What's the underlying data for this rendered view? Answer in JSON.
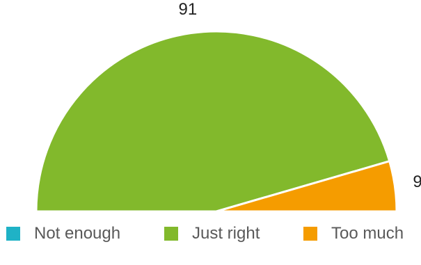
{
  "chart_data": {
    "type": "pie",
    "variant": "half-donut-semicircle",
    "title": "",
    "categories": [
      "Not enough",
      "Just right",
      "Too much"
    ],
    "values": [
      0,
      91,
      9
    ],
    "data_labels": [
      "",
      "91",
      "9"
    ],
    "colors": [
      "#1FB2C6",
      "#82B92C",
      "#F59C00"
    ],
    "legend_position": "bottom"
  }
}
